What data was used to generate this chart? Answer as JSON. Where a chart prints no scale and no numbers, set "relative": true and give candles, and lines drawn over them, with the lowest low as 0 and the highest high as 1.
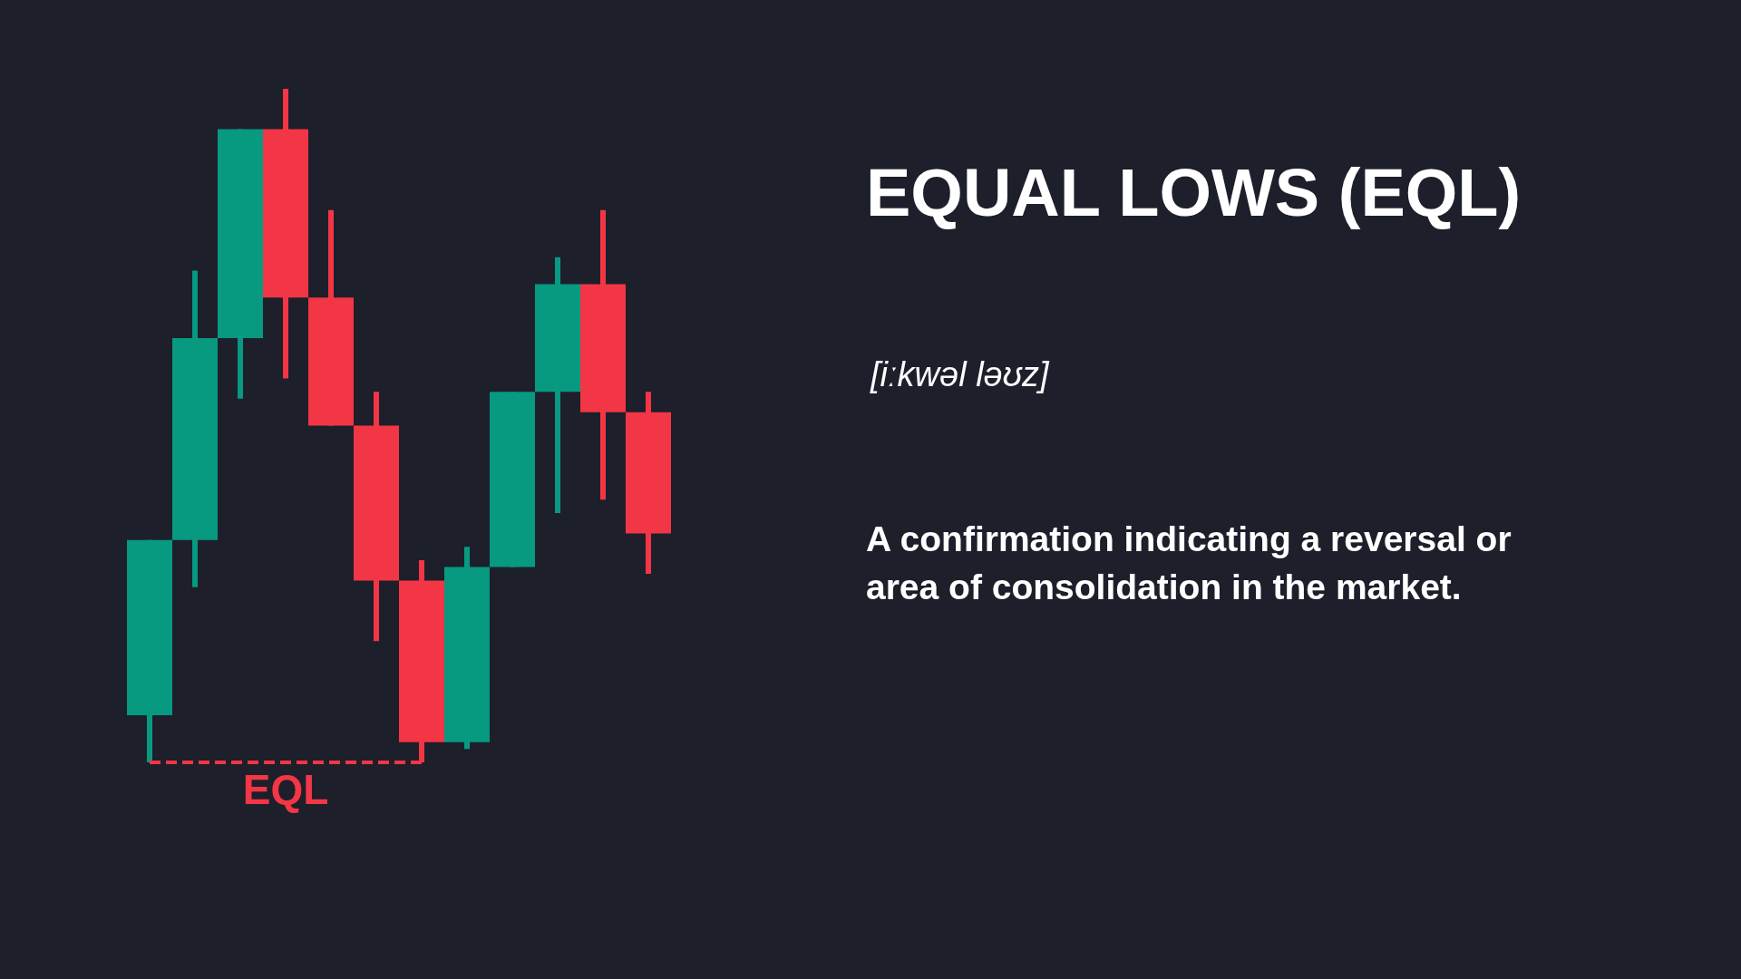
{
  "chart_data": {
    "type": "candlestick",
    "title": "EQUAL LOWS (EQL)",
    "subtitle": "[iːkwəl ləʊz]",
    "annotations": [
      "A confirmation indicating a reversal or area of consolidation in the market."
    ],
    "categories": [
      null,
      null,
      null,
      null,
      null,
      null,
      null,
      null,
      null,
      null,
      null,
      null
    ],
    "relative": true,
    "tick_labels": false,
    "ohlc": [
      [
        0.07,
        0.33,
        0,
        0.33
      ],
      [
        0.33,
        0.73,
        0.26,
        0.63
      ],
      [
        0.63,
        0.94,
        0.54,
        0.94
      ],
      [
        0.94,
        1,
        0.57,
        0.69
      ],
      [
        0.69,
        0.82,
        0.5,
        0.5
      ],
      [
        0.5,
        0.55,
        0.18,
        0.27
      ],
      [
        0.27,
        0.3,
        0,
        0.03
      ],
      [
        0.03,
        0.32,
        0.02,
        0.29
      ],
      [
        0.29,
        0.55,
        0.29,
        0.55
      ],
      [
        0.55,
        0.75,
        0.37,
        0.71
      ],
      [
        0.71,
        0.82,
        0.39,
        0.52
      ],
      [
        0.52,
        0.55,
        0.28,
        0.34
      ]
    ],
    "colors": [
      "#089981",
      "#089981",
      "#089981",
      "#f23645",
      "#f23645",
      "#f23645",
      "#f23645",
      "#089981",
      "#089981",
      "#089981",
      "#f23645",
      "#f23645"
    ],
    "ref_lines": [
      {
        "axis": "y",
        "value": 0,
        "label": "EQL",
        "color": "#f23645",
        "line_style": "dashed"
      }
    ]
  }
}
